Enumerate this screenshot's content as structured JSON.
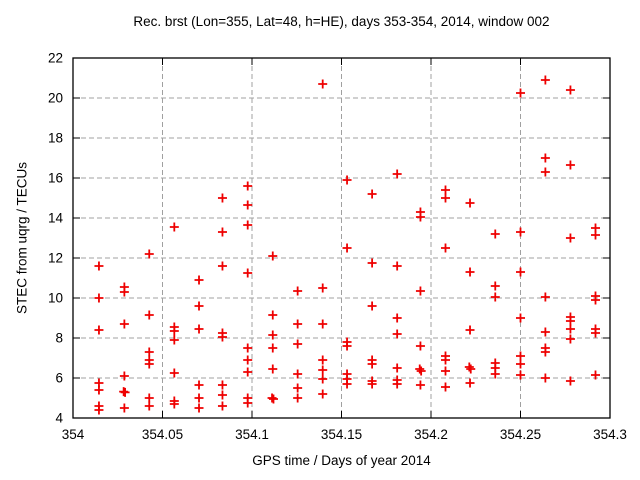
{
  "chart_data": {
    "type": "scatter",
    "title": "Rec. brst (Lon=355, Lat=48, h=HE), days 353-354, 2014, window 002",
    "xlabel": "GPS time / Days of year 2014",
    "ylabel": "STEC from uqrg / TECUs",
    "xlim": [
      354,
      354.3
    ],
    "ylim": [
      4,
      22
    ],
    "xticks": [
      354,
      354.05,
      354.1,
      354.15,
      354.2,
      354.25,
      354.3
    ],
    "xtick_labels": [
      "354",
      "354.05",
      "354.1",
      "354.15",
      "354.2",
      "354.25",
      "354.3"
    ],
    "yticks": [
      4,
      6,
      8,
      10,
      12,
      14,
      16,
      18,
      20,
      22
    ],
    "ytick_labels": [
      "4",
      "6",
      "8",
      "10",
      "12",
      "14",
      "16",
      "18",
      "20",
      "22"
    ],
    "grid": true,
    "legend": "none",
    "marker": "plus",
    "colors": {
      "marker": "#ee0000",
      "grid": "#a0a0a0",
      "border": "#000000",
      "text": "#000000"
    },
    "series": [
      {
        "name": "STEC",
        "points": [
          [
            354.0145,
            11.6
          ],
          [
            354.0145,
            10.0
          ],
          [
            354.0145,
            8.4
          ],
          [
            354.0145,
            5.75
          ],
          [
            354.0145,
            5.4
          ],
          [
            354.0145,
            4.6
          ],
          [
            354.0145,
            4.4
          ],
          [
            354.0287,
            10.55
          ],
          [
            354.0287,
            10.3
          ],
          [
            354.0287,
            8.7
          ],
          [
            354.0287,
            6.1
          ],
          [
            354.0283,
            5.32
          ],
          [
            354.0291,
            5.28
          ],
          [
            354.0287,
            4.5
          ],
          [
            354.0426,
            12.2
          ],
          [
            354.0426,
            9.15
          ],
          [
            354.0426,
            7.3
          ],
          [
            354.0426,
            6.9
          ],
          [
            354.0426,
            6.7
          ],
          [
            354.0426,
            5.0
          ],
          [
            354.0426,
            4.6
          ],
          [
            354.0566,
            13.55
          ],
          [
            354.0566,
            8.55
          ],
          [
            354.0566,
            8.35
          ],
          [
            354.0566,
            7.9
          ],
          [
            354.0566,
            6.25
          ],
          [
            354.0566,
            4.85
          ],
          [
            354.0566,
            4.7
          ],
          [
            354.0704,
            10.9
          ],
          [
            354.0704,
            9.6
          ],
          [
            354.0704,
            8.45
          ],
          [
            354.0704,
            5.65
          ],
          [
            354.0704,
            5.0
          ],
          [
            354.0704,
            4.5
          ],
          [
            354.0835,
            15.0
          ],
          [
            354.0835,
            13.3
          ],
          [
            354.0835,
            11.6
          ],
          [
            354.0835,
            8.25
          ],
          [
            354.0835,
            8.05
          ],
          [
            354.0835,
            5.65
          ],
          [
            354.0835,
            5.15
          ],
          [
            354.0835,
            4.6
          ],
          [
            354.0976,
            15.6
          ],
          [
            354.0976,
            14.65
          ],
          [
            354.0976,
            13.65
          ],
          [
            354.0976,
            11.25
          ],
          [
            354.0976,
            7.5
          ],
          [
            354.0976,
            6.9
          ],
          [
            354.0976,
            6.3
          ],
          [
            354.0976,
            5.0
          ],
          [
            354.0976,
            4.75
          ],
          [
            354.1116,
            12.1
          ],
          [
            354.1116,
            9.15
          ],
          [
            354.1116,
            8.15
          ],
          [
            354.1116,
            7.5
          ],
          [
            354.1116,
            6.45
          ],
          [
            354.1112,
            5.0
          ],
          [
            354.112,
            4.95
          ],
          [
            354.1255,
            10.35
          ],
          [
            354.1255,
            8.7
          ],
          [
            354.1255,
            7.7
          ],
          [
            354.1255,
            6.2
          ],
          [
            354.1255,
            5.5
          ],
          [
            354.1255,
            5.0
          ],
          [
            354.1395,
            20.7
          ],
          [
            354.1395,
            10.5
          ],
          [
            354.1395,
            8.7
          ],
          [
            354.1395,
            6.9
          ],
          [
            354.1395,
            6.4
          ],
          [
            354.1395,
            5.95
          ],
          [
            354.1395,
            5.2
          ],
          [
            354.1531,
            15.9
          ],
          [
            354.1531,
            12.5
          ],
          [
            354.1531,
            7.8
          ],
          [
            354.1531,
            7.6
          ],
          [
            354.1531,
            6.2
          ],
          [
            354.1531,
            5.95
          ],
          [
            354.1531,
            5.7
          ],
          [
            354.1671,
            15.2
          ],
          [
            354.1671,
            11.75
          ],
          [
            354.1671,
            9.6
          ],
          [
            354.1671,
            6.9
          ],
          [
            354.1671,
            6.7
          ],
          [
            354.1671,
            5.85
          ],
          [
            354.1671,
            5.7
          ],
          [
            354.1811,
            16.2
          ],
          [
            354.1811,
            11.6
          ],
          [
            354.1811,
            9.0
          ],
          [
            354.1811,
            8.2
          ],
          [
            354.1811,
            6.5
          ],
          [
            354.1811,
            5.9
          ],
          [
            354.1811,
            5.7
          ],
          [
            354.1941,
            14.3
          ],
          [
            354.1941,
            14.05
          ],
          [
            354.1941,
            10.35
          ],
          [
            354.1941,
            7.6
          ],
          [
            354.1937,
            6.45
          ],
          [
            354.1945,
            6.35
          ],
          [
            354.1941,
            5.65
          ],
          [
            354.2081,
            15.4
          ],
          [
            354.2081,
            15.0
          ],
          [
            354.2081,
            12.5
          ],
          [
            354.2081,
            7.1
          ],
          [
            354.2081,
            6.9
          ],
          [
            354.2081,
            6.35
          ],
          [
            354.2081,
            5.55
          ],
          [
            354.2218,
            14.75
          ],
          [
            354.2218,
            11.3
          ],
          [
            354.2218,
            8.4
          ],
          [
            354.2214,
            6.55
          ],
          [
            354.2222,
            6.45
          ],
          [
            354.2218,
            5.75
          ],
          [
            354.2359,
            13.2
          ],
          [
            354.2359,
            10.6
          ],
          [
            354.2359,
            10.05
          ],
          [
            354.2359,
            6.75
          ],
          [
            354.2359,
            6.5
          ],
          [
            354.2359,
            6.2
          ],
          [
            354.25,
            20.25
          ],
          [
            354.25,
            13.3
          ],
          [
            354.25,
            11.3
          ],
          [
            354.25,
            9.0
          ],
          [
            354.25,
            7.1
          ],
          [
            354.25,
            6.7
          ],
          [
            354.25,
            6.15
          ],
          [
            354.2639,
            20.9
          ],
          [
            354.2639,
            17.0
          ],
          [
            354.2639,
            16.3
          ],
          [
            354.2639,
            10.05
          ],
          [
            354.2639,
            8.3
          ],
          [
            354.2639,
            7.5
          ],
          [
            354.2639,
            7.3
          ],
          [
            354.2639,
            6.0
          ],
          [
            354.2779,
            20.4
          ],
          [
            354.2779,
            16.65
          ],
          [
            354.2779,
            13.0
          ],
          [
            354.2779,
            9.05
          ],
          [
            354.2779,
            8.85
          ],
          [
            354.2779,
            8.45
          ],
          [
            354.2779,
            7.95
          ],
          [
            354.2779,
            5.85
          ],
          [
            354.2919,
            13.5
          ],
          [
            354.2919,
            13.15
          ],
          [
            354.2919,
            10.1
          ],
          [
            354.2919,
            9.9
          ],
          [
            354.2919,
            8.45
          ],
          [
            354.2919,
            8.25
          ],
          [
            354.2919,
            6.15
          ]
        ]
      }
    ]
  }
}
